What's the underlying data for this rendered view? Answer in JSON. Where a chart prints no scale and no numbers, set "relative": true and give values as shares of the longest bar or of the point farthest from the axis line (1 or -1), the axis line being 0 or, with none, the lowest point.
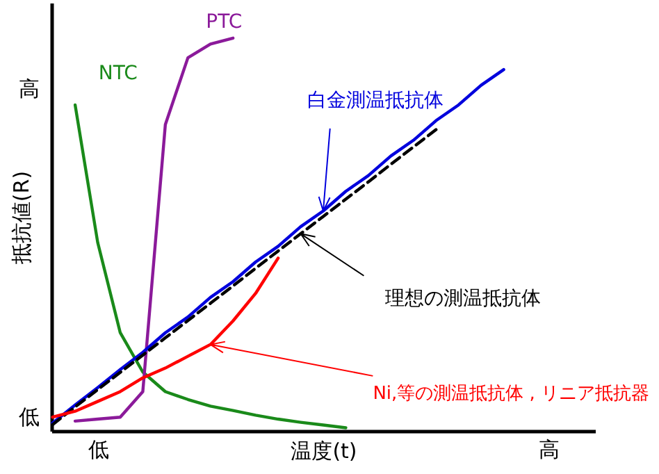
{
  "chart_data": {
    "type": "line",
    "relative": true,
    "xlabel": "温度(t)",
    "ylabel": "抵抗値(R)",
    "categories": [
      null,
      null,
      "低",
      null,
      null,
      null,
      null,
      null,
      null,
      null,
      null,
      null,
      null,
      null,
      null,
      null,
      null,
      null,
      null,
      null,
      null,
      null,
      "高",
      null,
      null
    ],
    "grid": false,
    "marker": "none",
    "annotations": [
      "低",
      "高"
    ],
    "series": [
      {
        "name": "NTC",
        "color": "#1a8a1a",
        "line_style": "solid",
        "values": [
          null,
          0.83,
          0.48,
          0.25,
          0.15,
          0.1,
          0.08,
          0.063,
          0.052,
          0.04,
          0.03,
          0.022,
          0.015,
          0.008,
          null,
          null,
          null,
          null,
          null,
          null,
          null,
          null,
          null,
          null,
          null
        ]
      },
      {
        "name": "PTC",
        "color": "#8b1a9a",
        "line_style": "solid",
        "values": [
          null,
          0.025,
          0.03,
          0.035,
          0.1,
          0.78,
          0.95,
          0.985,
          1.0,
          null,
          null,
          null,
          null,
          null,
          null,
          null,
          null,
          null,
          null,
          null,
          null,
          null,
          null,
          null,
          null
        ]
      },
      {
        "name": "白金測温抵抗体",
        "color": "#0000dd",
        "line_style": "solid",
        "values": [
          0.02,
          0.066,
          0.11,
          0.156,
          0.2,
          0.25,
          0.29,
          0.34,
          0.38,
          0.43,
          0.47,
          0.52,
          0.56,
          0.61,
          0.65,
          0.7,
          0.74,
          0.79,
          0.83,
          0.88,
          0.92,
          null,
          null,
          null,
          null
        ]
      },
      {
        "name": "理想の測温抵抗体",
        "color": "#000000",
        "line_style": "dashed",
        "values": [
          0.016,
          0.061,
          0.105,
          0.149,
          0.193,
          0.237,
          0.281,
          0.325,
          0.369,
          0.414,
          0.458,
          0.502,
          0.546,
          0.59,
          0.634,
          0.679,
          0.723,
          0.767,
          null,
          null,
          null,
          null,
          null,
          null,
          null
        ]
      },
      {
        "name": "Ni,等の測温抵抗体 , リニア抵抗器",
        "color": "#ff0000",
        "line_style": "solid",
        "values": [
          0.035,
          0.05,
          0.075,
          0.1,
          0.135,
          0.16,
          0.19,
          0.22,
          0.28,
          0.35,
          0.44,
          null,
          null,
          null,
          null,
          null,
          null,
          null,
          null,
          null,
          null,
          null,
          null,
          null,
          null
        ]
      }
    ]
  }
}
